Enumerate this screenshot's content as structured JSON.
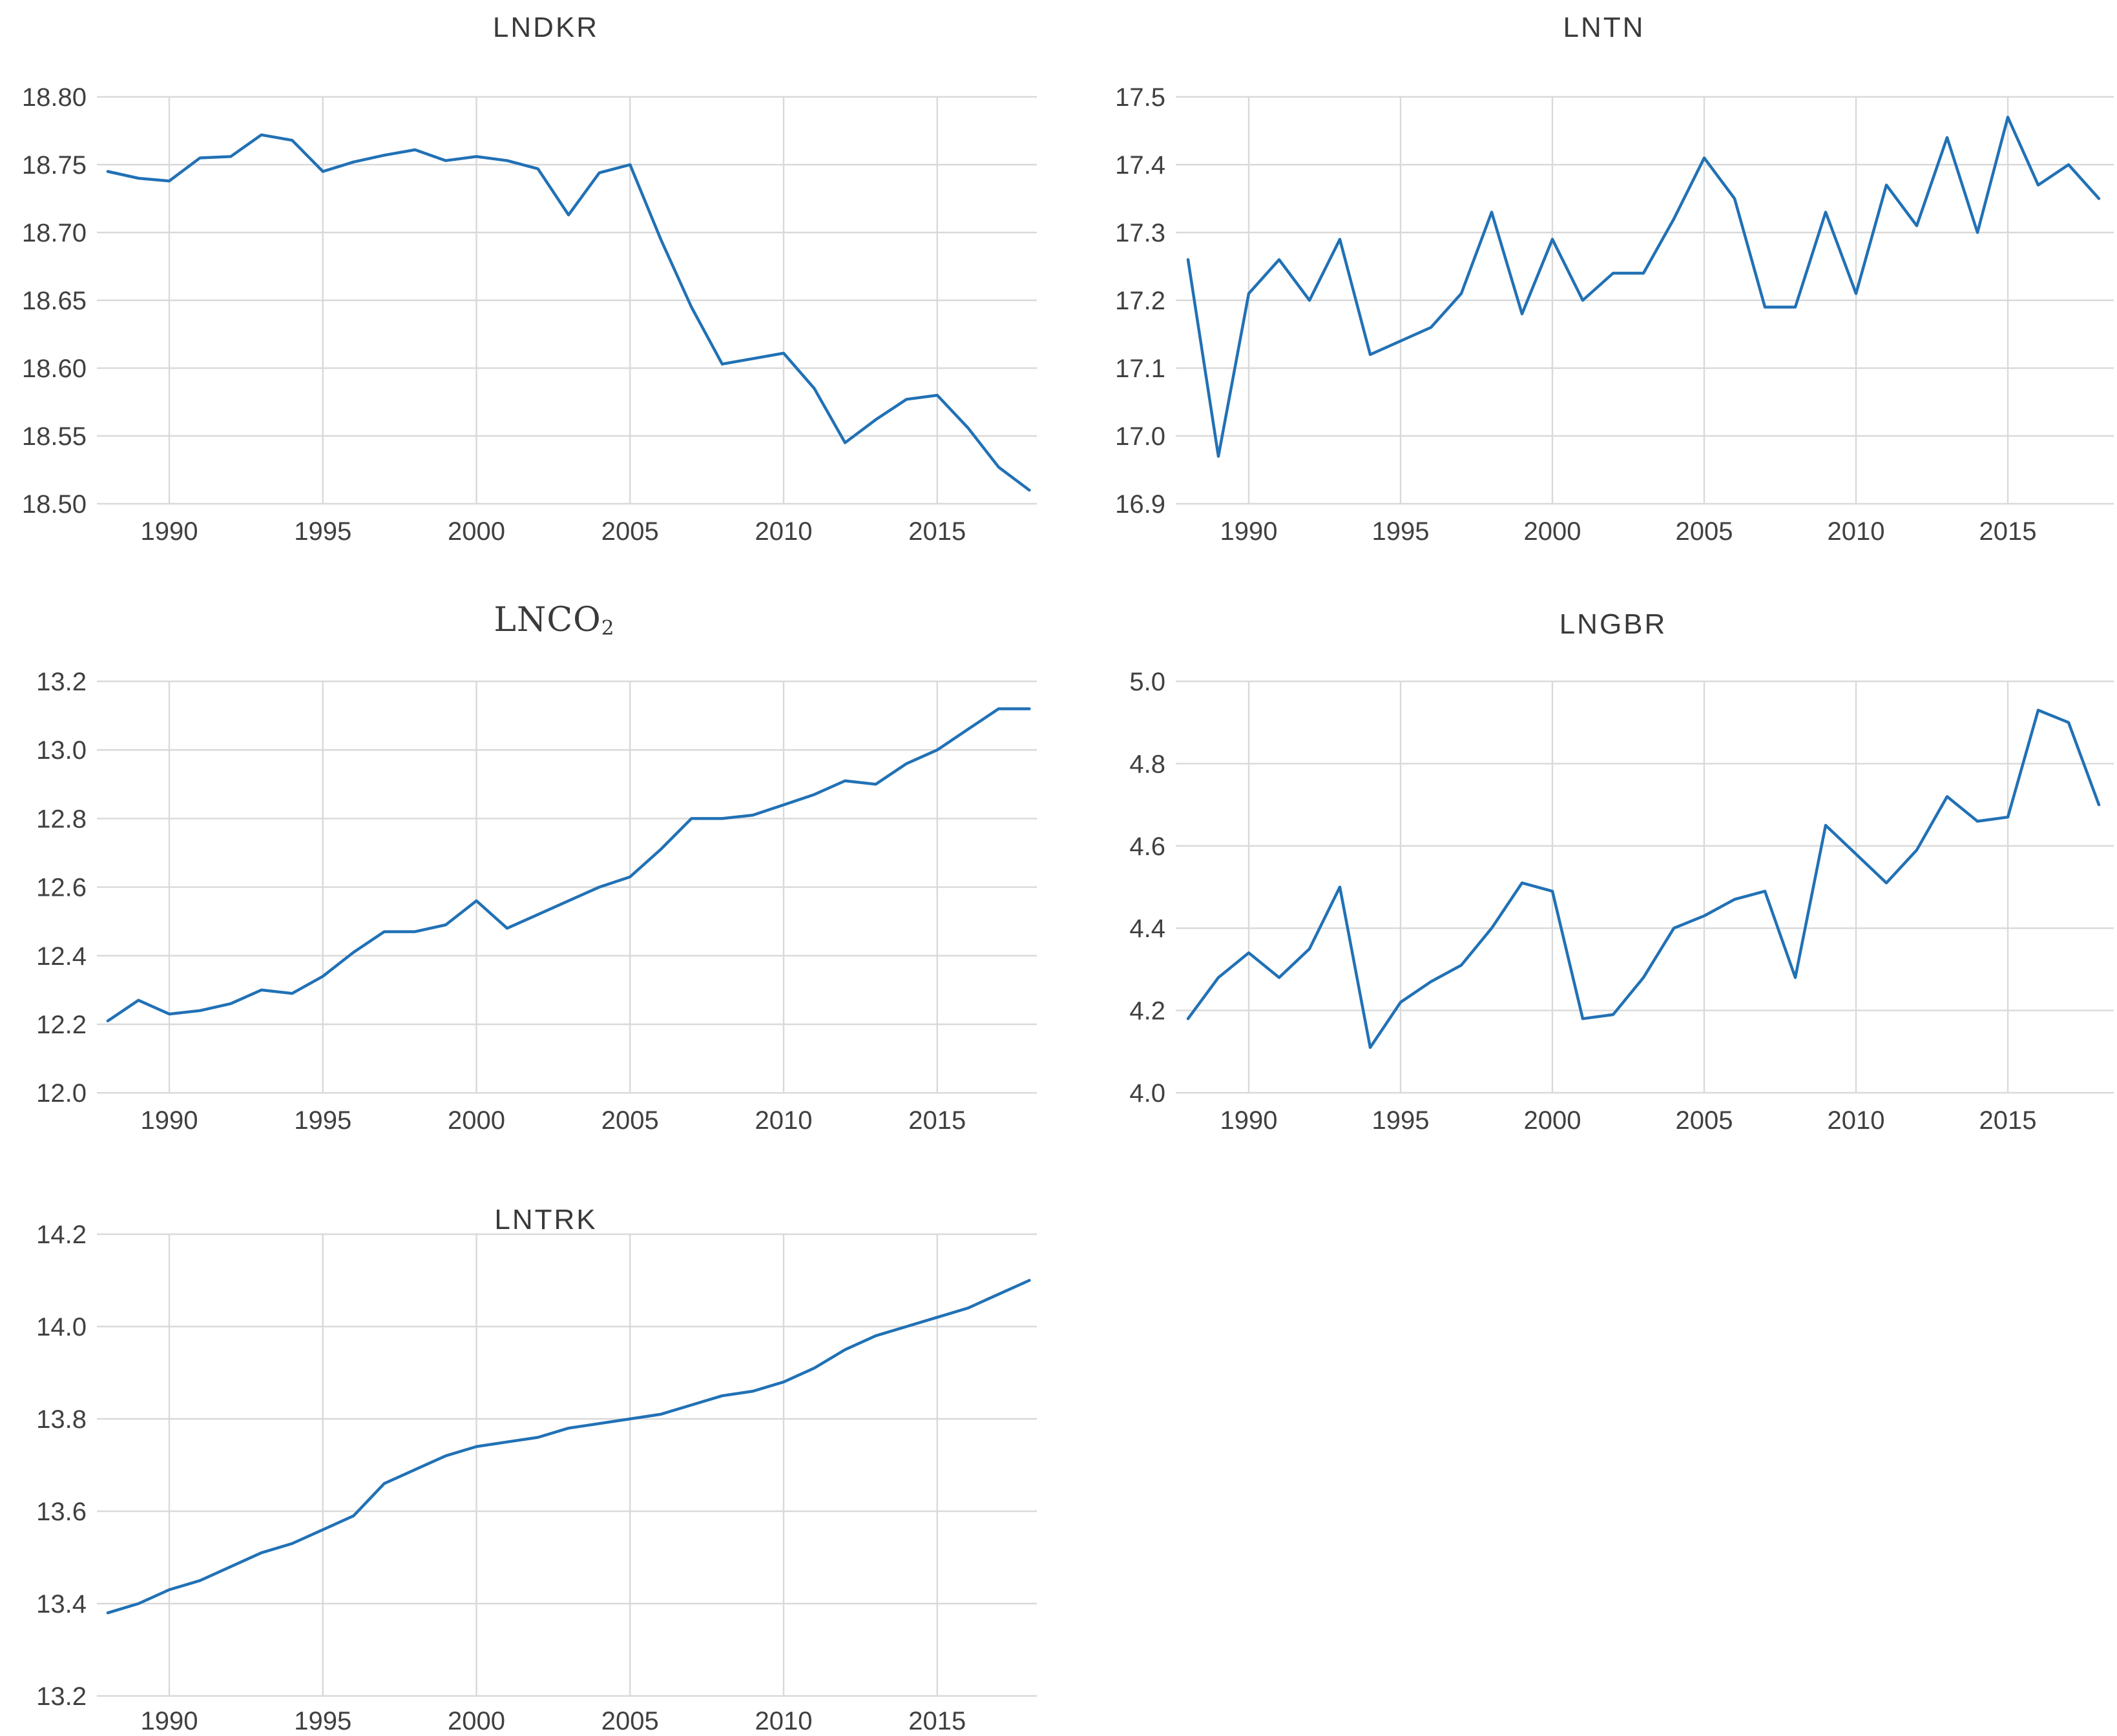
{
  "figure": {
    "description": "Grid of five line charts of log-transformed annual series, 1988-2018",
    "background": "#ffffff"
  },
  "colors": {
    "line": "#2171b5",
    "grid": "#d9d9d9",
    "tick_text": "#404040",
    "title_text": "#3a3a3a"
  },
  "chart_data": [
    {
      "type": "line",
      "title": "LNDKR",
      "ylim": [
        18.5,
        18.8
      ],
      "yticks": [
        "18.80",
        "18.75",
        "18.70",
        "18.65",
        "18.60",
        "18.55",
        "18.50"
      ],
      "xticks": [
        "1990",
        "1995",
        "2000",
        "2005",
        "2010",
        "2015"
      ],
      "xtick_years": [
        1990,
        1995,
        2000,
        2005,
        2010,
        2015
      ],
      "x": [
        1988,
        1989,
        1990,
        1991,
        1992,
        1993,
        1994,
        1995,
        1996,
        1997,
        1998,
        1999,
        2000,
        2001,
        2002,
        2003,
        2004,
        2005,
        2006,
        2007,
        2008,
        2009,
        2010,
        2011,
        2012,
        2013,
        2014,
        2015,
        2016,
        2017,
        2018
      ],
      "y": [
        18.745,
        18.74,
        18.738,
        18.755,
        18.756,
        18.772,
        18.768,
        18.745,
        18.752,
        18.757,
        18.761,
        18.753,
        18.756,
        18.753,
        18.747,
        18.713,
        18.744,
        18.75,
        18.695,
        18.645,
        18.603,
        18.607,
        18.611,
        18.585,
        18.545,
        18.562,
        18.577,
        18.58,
        18.556,
        18.527,
        18.51
      ],
      "legend": "none",
      "grid": true
    },
    {
      "type": "line",
      "title": "LNTN",
      "ylim": [
        16.9,
        17.5
      ],
      "yticks": [
        "17.5",
        "17.4",
        "17.3",
        "17.2",
        "17.1",
        "17.0",
        "16.9"
      ],
      "xticks": [
        "1990",
        "1995",
        "2000",
        "2005",
        "2010",
        "2015"
      ],
      "xtick_years": [
        1990,
        1995,
        2000,
        2005,
        2010,
        2015
      ],
      "x": [
        1988,
        1989,
        1990,
        1991,
        1992,
        1993,
        1994,
        1995,
        1996,
        1997,
        1998,
        1999,
        2000,
        2001,
        2002,
        2003,
        2004,
        2005,
        2006,
        2007,
        2008,
        2009,
        2010,
        2011,
        2012,
        2013,
        2014,
        2015,
        2016,
        2017,
        2018
      ],
      "y": [
        17.26,
        16.97,
        17.21,
        17.26,
        17.2,
        17.29,
        17.12,
        17.14,
        17.16,
        17.21,
        17.33,
        17.18,
        17.29,
        17.2,
        17.24,
        17.24,
        17.32,
        17.41,
        17.35,
        17.19,
        17.19,
        17.33,
        17.21,
        17.37,
        17.31,
        17.44,
        17.3,
        17.47,
        17.37,
        17.4,
        17.35
      ],
      "legend": "none",
      "grid": true
    },
    {
      "type": "line",
      "title": "LNCO",
      "title_sub": "2",
      "title_full": "LNCO2",
      "ylim": [
        12.0,
        13.2
      ],
      "yticks": [
        "13.2",
        "13.0",
        "12.8",
        "12.6",
        "12.4",
        "12.2",
        "12.0"
      ],
      "xticks": [
        "1990",
        "1995",
        "2000",
        "2005",
        "2010",
        "2015"
      ],
      "xtick_years": [
        1990,
        1995,
        2000,
        2005,
        2010,
        2015
      ],
      "x": [
        1988,
        1989,
        1990,
        1991,
        1992,
        1993,
        1994,
        1995,
        1996,
        1997,
        1998,
        1999,
        2000,
        2001,
        2002,
        2003,
        2004,
        2005,
        2006,
        2007,
        2008,
        2009,
        2010,
        2011,
        2012,
        2013,
        2014,
        2015,
        2016,
        2017,
        2018
      ],
      "y": [
        12.21,
        12.27,
        12.23,
        12.24,
        12.26,
        12.3,
        12.29,
        12.34,
        12.41,
        12.47,
        12.47,
        12.49,
        12.56,
        12.48,
        12.52,
        12.56,
        12.6,
        12.63,
        12.71,
        12.8,
        12.8,
        12.81,
        12.84,
        12.87,
        12.91,
        12.9,
        12.96,
        13.0,
        13.06,
        13.12,
        13.12
      ],
      "legend": "none",
      "grid": true
    },
    {
      "type": "line",
      "title": "LNGBR",
      "ylim": [
        4.0,
        5.0
      ],
      "yticks": [
        "5.0",
        "4.8",
        "4.6",
        "4.4",
        "4.2",
        "4.0"
      ],
      "xticks": [
        "1990",
        "1995",
        "2000",
        "2005",
        "2010",
        "2015"
      ],
      "xtick_years": [
        1990,
        1995,
        2000,
        2005,
        2010,
        2015
      ],
      "x": [
        1988,
        1989,
        1990,
        1991,
        1992,
        1993,
        1994,
        1995,
        1996,
        1997,
        1998,
        1999,
        2000,
        2001,
        2002,
        2003,
        2004,
        2005,
        2006,
        2007,
        2008,
        2009,
        2010,
        2011,
        2012,
        2013,
        2014,
        2015,
        2016,
        2017,
        2018
      ],
      "y": [
        4.18,
        4.28,
        4.34,
        4.28,
        4.35,
        4.5,
        4.11,
        4.22,
        4.27,
        4.31,
        4.4,
        4.51,
        4.49,
        4.18,
        4.19,
        4.28,
        4.4,
        4.43,
        4.47,
        4.49,
        4.28,
        4.65,
        4.58,
        4.51,
        4.59,
        4.72,
        4.66,
        4.67,
        4.93,
        4.9,
        4.7
      ],
      "legend": "none",
      "grid": true
    },
    {
      "type": "line",
      "title": "LNTRK",
      "ylim": [
        13.2,
        14.2
      ],
      "yticks": [
        "14.2",
        "14.0",
        "13.8",
        "13.6",
        "13.4",
        "13.2"
      ],
      "xticks": [
        "1990",
        "1995",
        "2000",
        "2005",
        "2010",
        "2015"
      ],
      "xtick_years": [
        1990,
        1995,
        2000,
        2005,
        2010,
        2015
      ],
      "x": [
        1988,
        1989,
        1990,
        1991,
        1992,
        1993,
        1994,
        1995,
        1996,
        1997,
        1998,
        1999,
        2000,
        2001,
        2002,
        2003,
        2004,
        2005,
        2006,
        2007,
        2008,
        2009,
        2010,
        2011,
        2012,
        2013,
        2014,
        2015,
        2016,
        2017,
        2018
      ],
      "y": [
        13.38,
        13.4,
        13.43,
        13.45,
        13.48,
        13.51,
        13.53,
        13.56,
        13.59,
        13.66,
        13.69,
        13.72,
        13.74,
        13.75,
        13.76,
        13.78,
        13.79,
        13.8,
        13.81,
        13.83,
        13.85,
        13.86,
        13.88,
        13.91,
        13.95,
        13.98,
        14.0,
        14.02,
        14.04,
        14.07,
        14.1
      ],
      "legend": "none",
      "grid": true
    }
  ]
}
